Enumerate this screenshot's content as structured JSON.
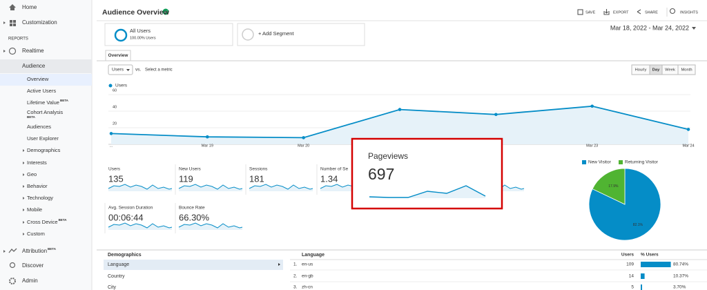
{
  "sidebar": {
    "top": [
      "Home",
      "Customization"
    ],
    "section_label": "REPORTS",
    "reports": [
      "Realtime",
      "Audience"
    ],
    "audience_items": [
      {
        "label": "Overview"
      },
      {
        "label": "Active Users"
      },
      {
        "label": "Lifetime Value",
        "badge": "BETA"
      },
      {
        "label": "Cohort Analysis",
        "badge": "BETA"
      },
      {
        "label": "Audiences"
      },
      {
        "label": "User Explorer"
      },
      {
        "label": "Demographics"
      },
      {
        "label": "Interests"
      },
      {
        "label": "Geo"
      },
      {
        "label": "Behavior"
      },
      {
        "label": "Technology"
      },
      {
        "label": "Mobile"
      },
      {
        "label": "Cross Device",
        "badge": "BETA"
      },
      {
        "label": "Custom"
      }
    ],
    "bottom": [
      {
        "label": "Attribution",
        "badge": "BETA"
      },
      {
        "label": "Discover"
      },
      {
        "label": "Admin"
      }
    ]
  },
  "header": {
    "title": "Audience Overview",
    "actions": [
      "SAVE",
      "EXPORT",
      "SHARE",
      "INSIGHTS"
    ]
  },
  "segments": {
    "active": {
      "name": "All Users",
      "detail": "100.00% Users"
    },
    "add": "+ Add Segment"
  },
  "date_range": "Mar 18, 2022 - Mar 24, 2022",
  "tabs": [
    "Overview"
  ],
  "metric_selector": {
    "metric": "Users",
    "vs": "vs.",
    "link": "Select a metric"
  },
  "granularity": {
    "options": [
      "Hourly",
      "Day",
      "Week",
      "Month"
    ],
    "selected_index": 1
  },
  "line_chart": {
    "type": "line",
    "categories": [
      "...",
      "Mar 19",
      "Mar 20",
      null,
      null,
      "Mar 23",
      "Mar 24"
    ],
    "series": [
      {
        "name": "Users",
        "color": "#058dc7",
        "values": [
          13,
          9,
          8,
          42,
          36,
          46,
          18
        ]
      }
    ],
    "ylim": [
      0,
      60
    ],
    "yticks": [
      20,
      40,
      60
    ],
    "grid": true
  },
  "scorecards": [
    {
      "label": "Users",
      "value": "135"
    },
    {
      "label": "New Users",
      "value": "119"
    },
    {
      "label": "Sessions",
      "value": "181"
    },
    {
      "label": "Number of Se",
      "value": "1.34"
    },
    {
      "label": "Avg. Session Duration",
      "value": "00:06:44"
    },
    {
      "label": "Bounce Rate",
      "value": "66.30%"
    }
  ],
  "highlight": {
    "label": "Pageviews",
    "value": "697"
  },
  "pie_chart": {
    "type": "pie",
    "categories": [
      "New Visitor",
      "Returning Visitor"
    ],
    "values": [
      82.1,
      17.9
    ],
    "value_labels": [
      "82.1%",
      "17.9%"
    ],
    "colors": [
      "#058dc7",
      "#50b432"
    ]
  },
  "demographics": {
    "title": "Demographics",
    "items": [
      "Language",
      "Country",
      "City"
    ],
    "selected_index": 0
  },
  "language_table": {
    "headers": [
      "Language",
      "Users",
      "% Users"
    ],
    "rows": [
      {
        "rank": "1.",
        "language": "en-us",
        "users": 109,
        "percent": 80.74,
        "percent_label": "80.74%"
      },
      {
        "rank": "2.",
        "language": "en-gb",
        "users": 14,
        "percent": 10.37,
        "percent_label": "10.37%"
      },
      {
        "rank": "3.",
        "language": "zh-cn",
        "users": 5,
        "percent": 3.7,
        "percent_label": "3.70%"
      }
    ]
  }
}
